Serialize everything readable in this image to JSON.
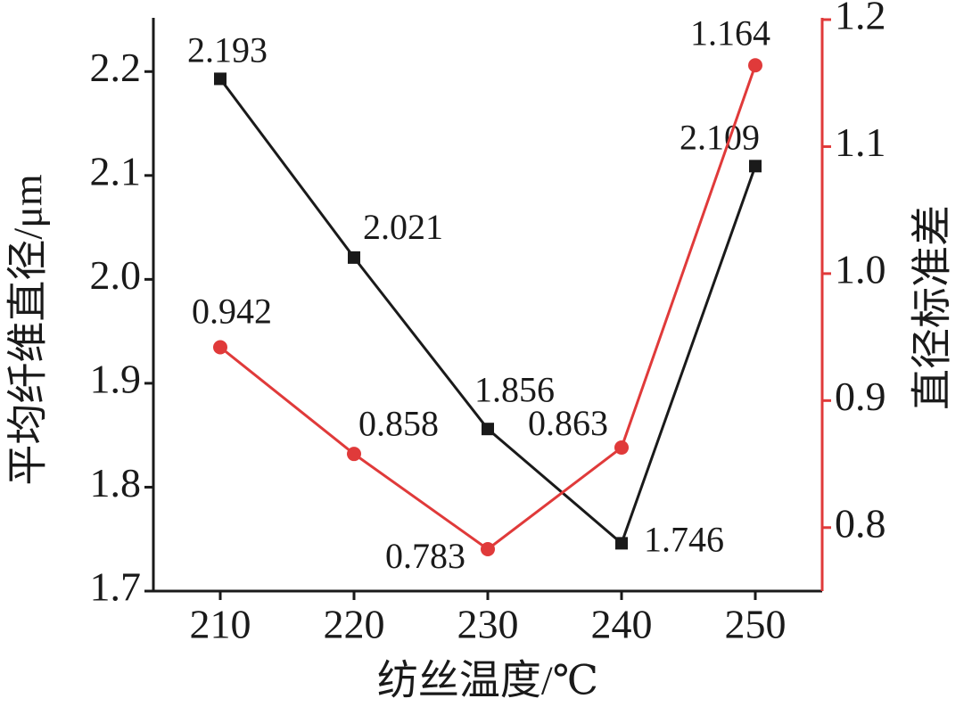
{
  "chart_data": {
    "type": "line",
    "x": [
      210,
      220,
      230,
      240,
      250
    ],
    "xlim": [
      205,
      255
    ],
    "xticks": [
      210,
      220,
      230,
      240,
      250
    ],
    "ylim": [
      1.7,
      2.25
    ],
    "yticks": [
      1.7,
      1.8,
      1.9,
      2.0,
      2.1,
      2.2
    ],
    "y2lim": [
      0.75,
      1.2
    ],
    "y2ticks": [
      0.8,
      0.9,
      1.0,
      1.1,
      1.2
    ],
    "xlabel": "纺丝温度/℃",
    "ylabel": "平均纤维直径/μm",
    "y2label": "直径标准差",
    "series": [
      {
        "name": "平均纤维直径",
        "color": "#1a1a1a",
        "marker": "square",
        "values": [
          2.193,
          2.021,
          1.856,
          1.746,
          2.109
        ]
      },
      {
        "name": "直径标准差",
        "color": "#e03a3a",
        "marker": "circle",
        "axis": "y2",
        "values": [
          0.942,
          0.858,
          0.783,
          0.863,
          1.164
        ]
      }
    ]
  }
}
